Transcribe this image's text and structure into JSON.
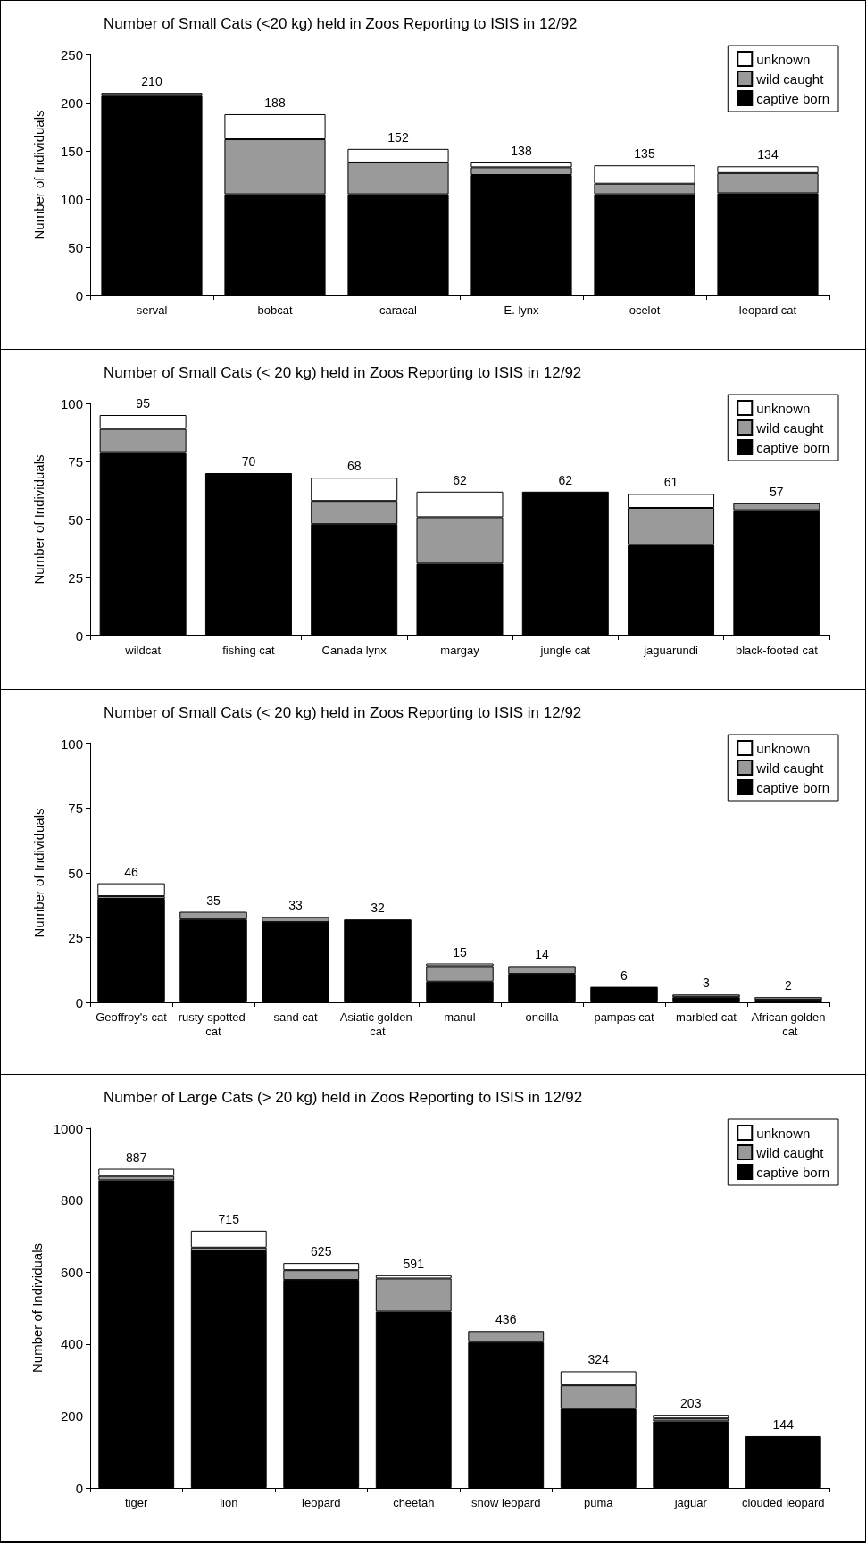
{
  "chart_data": [
    {
      "type": "bar",
      "stacked": true,
      "title": "Number of Small Cats (<20 kg) held in Zoos Reporting to ISIS in 12/92",
      "ylabel": "Number of Individuals",
      "categories": [
        "serval",
        "bobcat",
        "caracal",
        "E. lynx",
        "ocelot",
        "leopard cat"
      ],
      "ylim": [
        0,
        250
      ],
      "yticks": [
        0,
        50,
        100,
        150,
        200,
        250
      ],
      "grid": false,
      "legend": "top right",
      "series": [
        {
          "name": "captive born",
          "color": "#000000",
          "values": [
            208,
            105,
            105,
            125,
            105,
            106
          ]
        },
        {
          "name": "wild caught",
          "color": "#9a9a9a",
          "values": [
            0,
            57,
            33,
            8,
            11,
            21
          ]
        },
        {
          "name": "unknown",
          "color": "#ffffff",
          "values": [
            2,
            26,
            14,
            5,
            19,
            7
          ]
        }
      ],
      "totals": [
        "210",
        "188",
        "152",
        "138",
        "135",
        "134"
      ]
    },
    {
      "type": "bar",
      "stacked": true,
      "title": "Number of Small Cats (< 20 kg) held in Zoos Reporting to ISIS in 12/92",
      "ylabel": "Number of Individuals",
      "categories": [
        "wildcat",
        "fishing cat",
        "Canada lynx",
        "margay",
        "jungle cat",
        "jaguarundi",
        "black-footed cat"
      ],
      "ylim": [
        0,
        100
      ],
      "yticks": [
        0,
        25,
        50,
        75,
        100
      ],
      "grid": false,
      "legend": "top right",
      "series": [
        {
          "name": "captive born",
          "color": "#000000",
          "values": [
            79,
            70,
            48,
            31,
            62,
            39,
            54
          ]
        },
        {
          "name": "wild caught",
          "color": "#9a9a9a",
          "values": [
            10,
            0,
            10,
            20,
            0,
            16,
            3
          ]
        },
        {
          "name": "unknown",
          "color": "#ffffff",
          "values": [
            6,
            0,
            10,
            11,
            0,
            6,
            0
          ]
        }
      ],
      "totals": [
        "95",
        "70",
        "68",
        "62",
        "62",
        "61",
        "57"
      ]
    },
    {
      "type": "bar",
      "stacked": true,
      "title": "Number of Small Cats (< 20 kg) held in Zoos Reporting to ISIS in 12/92",
      "ylabel": "Number of Individuals",
      "categories": [
        "Geoffroy's cat",
        "rusty-spotted cat",
        "sand cat",
        "Asiatic golden cat",
        "manul",
        "oncilla",
        "pampas cat",
        "marbled cat",
        "African golden cat"
      ],
      "ylim": [
        0,
        100
      ],
      "yticks": [
        0,
        25,
        50,
        75,
        100
      ],
      "grid": false,
      "legend": "top right",
      "series": [
        {
          "name": "captive born",
          "color": "#000000",
          "values": [
            40,
            32,
            31,
            32,
            8,
            11,
            6,
            2,
            1
          ]
        },
        {
          "name": "wild caught",
          "color": "#9a9a9a",
          "values": [
            1,
            3,
            2,
            0,
            6,
            3,
            0,
            1,
            1
          ]
        },
        {
          "name": "unknown",
          "color": "#ffffff",
          "values": [
            5,
            0,
            0,
            0,
            1,
            0,
            0,
            0,
            0
          ]
        }
      ],
      "totals": [
        "46",
        "35",
        "33",
        "32",
        "15",
        "14",
        "6",
        "3",
        "2"
      ]
    },
    {
      "type": "bar",
      "stacked": true,
      "title": "Number of Large Cats (> 20 kg) held in Zoos Reporting to ISIS in 12/92",
      "ylabel": "Number of Individuals",
      "categories": [
        "tiger",
        "lion",
        "leopard",
        "cheetah",
        "snow leopard",
        "puma",
        "jaguar",
        "clouded leopard"
      ],
      "ylim": [
        0,
        1000
      ],
      "yticks": [
        0,
        200,
        400,
        600,
        800,
        1000
      ],
      "grid": false,
      "legend": "top right",
      "series": [
        {
          "name": "captive born",
          "color": "#000000",
          "values": [
            855,
            660,
            578,
            490,
            405,
            220,
            185,
            144
          ]
        },
        {
          "name": "wild caught",
          "color": "#9a9a9a",
          "values": [
            12,
            8,
            27,
            92,
            31,
            65,
            8,
            0
          ]
        },
        {
          "name": "unknown",
          "color": "#ffffff",
          "values": [
            20,
            47,
            20,
            9,
            0,
            39,
            10,
            0
          ]
        }
      ],
      "totals": [
        "887",
        "715",
        "625",
        "591",
        "436",
        "324",
        "203",
        "144"
      ]
    }
  ]
}
